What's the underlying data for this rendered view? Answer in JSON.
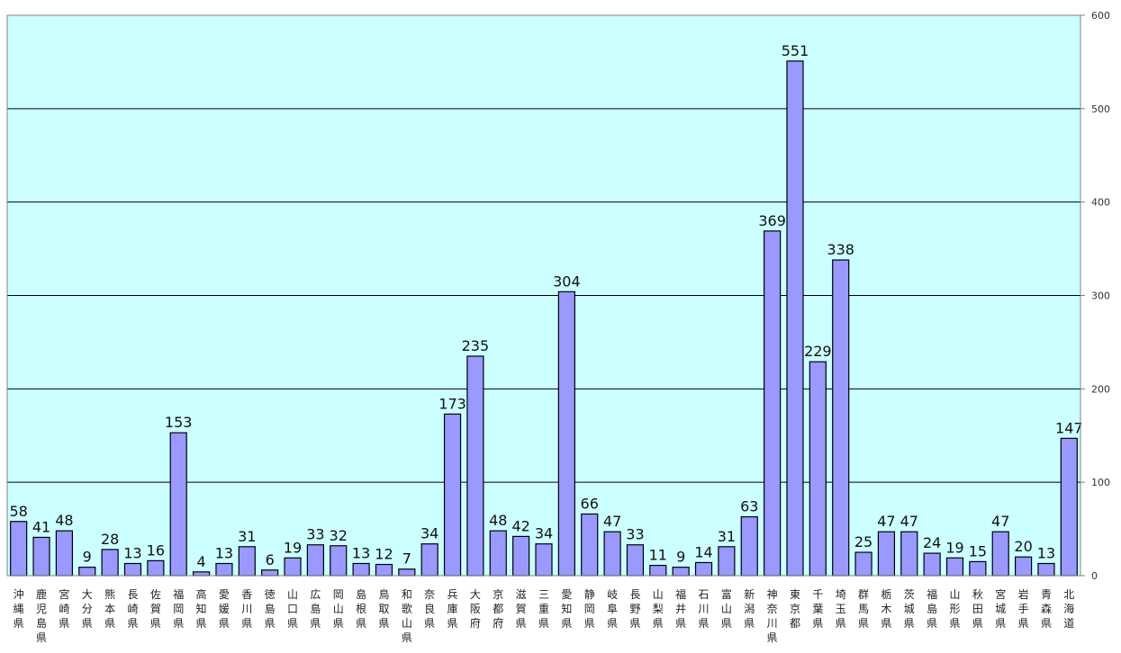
{
  "chart_data": {
    "type": "bar",
    "title": "",
    "xlabel": "",
    "ylabel": "",
    "ylim": [
      0,
      600
    ],
    "yticks": [
      0,
      100,
      200,
      300,
      400,
      500,
      600
    ],
    "y_axis_side": "right",
    "grid": true,
    "legend": "none",
    "colors": {
      "plot_background": "#ccffff",
      "bar_fill": "#9999ff",
      "bar_stroke": "#000000",
      "gridline": "#000000",
      "plot_border": "#808080"
    },
    "categories": [
      "沖縄県",
      "鹿児島県",
      "宮崎県",
      "大分県",
      "熊本県",
      "長崎県",
      "佐賀県",
      "福岡県",
      "高知県",
      "愛媛県",
      "香川県",
      "徳島県",
      "山口県",
      "広島県",
      "岡山県",
      "島根県",
      "鳥取県",
      "和歌山県",
      "奈良県",
      "兵庫県",
      "大阪府",
      "京都府",
      "滋賀県",
      "三重県",
      "愛知県",
      "静岡県",
      "岐阜県",
      "長野県",
      "山梨県",
      "福井県",
      "石川県",
      "富山県",
      "新潟県",
      "神奈川県",
      "東京都",
      "千葉県",
      "埼玉県",
      "群馬県",
      "栃木県",
      "茨城県",
      "福島県",
      "山形県",
      "秋田県",
      "宮城県",
      "岩手県",
      "青森県",
      "北海道"
    ],
    "values": [
      58,
      41,
      48,
      9,
      28,
      13,
      16,
      153,
      4,
      13,
      31,
      6,
      19,
      33,
      32,
      13,
      12,
      7,
      34,
      173,
      235,
      48,
      42,
      34,
      304,
      66,
      47,
      33,
      11,
      9,
      14,
      31,
      63,
      369,
      551,
      229,
      338,
      25,
      47,
      47,
      24,
      19,
      15,
      47,
      20,
      13,
      147
    ]
  }
}
